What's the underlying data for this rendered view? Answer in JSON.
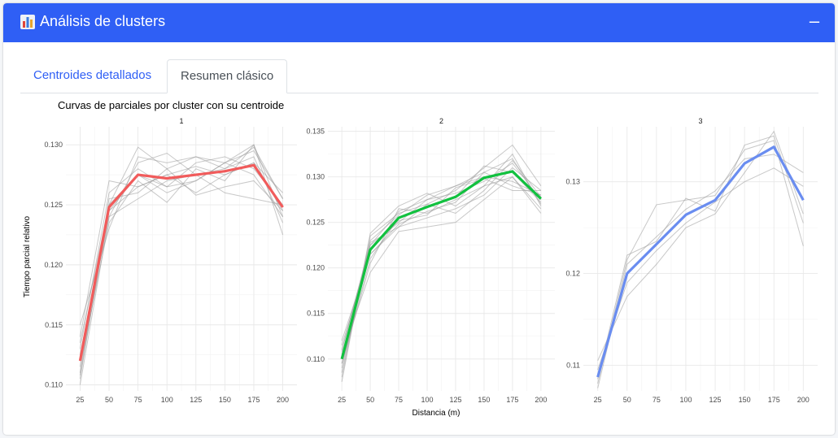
{
  "header": {
    "title": "Análisis de clusters",
    "collapse_label": "–"
  },
  "tabs": [
    {
      "label": "Centroides detallados",
      "active": false
    },
    {
      "label": "Resumen clásico",
      "active": true
    }
  ],
  "chart_data": {
    "type": "line",
    "title": "Curvas de parciales por cluster con su centroide",
    "xlabel": "Distancia (m)",
    "ylabel": "Tiempo parcial relativo",
    "x": [
      25,
      50,
      75,
      100,
      125,
      150,
      175,
      200
    ],
    "grid": true,
    "panels": [
      {
        "name": "1",
        "ylim": [
          0.1095,
          0.1315
        ],
        "yticks": [
          0.11,
          0.115,
          0.12,
          0.125,
          0.13
        ],
        "centroid_color": "#f15b5b",
        "centroid": [
          0.112,
          0.1248,
          0.1275,
          0.1272,
          0.1275,
          0.1278,
          0.1283,
          0.1248
        ],
        "members": [
          [
            0.1105,
            0.125,
            0.1298,
            0.128,
            0.129,
            0.1285,
            0.13,
            0.124
          ],
          [
            0.113,
            0.126,
            0.128,
            0.1265,
            0.127,
            0.1285,
            0.1295,
            0.1255
          ],
          [
            0.11,
            0.124,
            0.1285,
            0.1293,
            0.1275,
            0.128,
            0.129,
            0.1235
          ],
          [
            0.114,
            0.127,
            0.1265,
            0.1275,
            0.126,
            0.1275,
            0.1285,
            0.126
          ],
          [
            0.1115,
            0.1235,
            0.127,
            0.1252,
            0.128,
            0.127,
            0.13,
            0.1225
          ],
          [
            0.1125,
            0.1245,
            0.1275,
            0.1265,
            0.1285,
            0.129,
            0.128,
            0.125
          ],
          [
            0.111,
            0.1255,
            0.126,
            0.128,
            0.1258,
            0.1265,
            0.127,
            0.1245
          ],
          [
            0.115,
            0.123,
            0.129,
            0.1285,
            0.129,
            0.128,
            0.1298,
            0.1255
          ],
          [
            0.112,
            0.124,
            0.1255,
            0.127,
            0.1275,
            0.126,
            0.1255,
            0.125
          ],
          [
            0.1135,
            0.125,
            0.1275,
            0.126,
            0.127,
            0.1285,
            0.1275,
            0.124
          ],
          [
            0.1108,
            0.1245,
            0.1265,
            0.1275,
            0.1282,
            0.1275,
            0.1285,
            0.1245
          ]
        ]
      },
      {
        "name": "2",
        "ylim": [
          0.1065,
          0.1355
        ],
        "yticks": [
          0.11,
          0.115,
          0.12,
          0.125,
          0.13,
          0.135
        ],
        "centroid_color": "#11c13f",
        "centroid": [
          0.11,
          0.122,
          0.1255,
          0.1267,
          0.1278,
          0.1299,
          0.1306,
          0.1276
        ],
        "members": [
          [
            0.108,
            0.1235,
            0.126,
            0.127,
            0.1285,
            0.131,
            0.1335,
            0.129
          ],
          [
            0.111,
            0.1225,
            0.125,
            0.1275,
            0.129,
            0.1305,
            0.132,
            0.127
          ],
          [
            0.1095,
            0.1205,
            0.1265,
            0.126,
            0.1275,
            0.129,
            0.13,
            0.126
          ],
          [
            0.112,
            0.1215,
            0.1245,
            0.1255,
            0.1265,
            0.128,
            0.131,
            0.1285
          ],
          [
            0.1085,
            0.123,
            0.1258,
            0.128,
            0.129,
            0.13,
            0.1295,
            0.128
          ],
          [
            0.1105,
            0.1195,
            0.124,
            0.1245,
            0.125,
            0.1275,
            0.13,
            0.1265
          ],
          [
            0.109,
            0.1225,
            0.1262,
            0.1275,
            0.1282,
            0.1295,
            0.1315,
            0.1275
          ],
          [
            0.1115,
            0.1215,
            0.1248,
            0.1262,
            0.1272,
            0.1305,
            0.129,
            0.128
          ],
          [
            0.1075,
            0.1238,
            0.1268,
            0.1282,
            0.1268,
            0.129,
            0.1325,
            0.1268
          ],
          [
            0.11,
            0.122,
            0.1252,
            0.1258,
            0.1288,
            0.1298,
            0.1285,
            0.1285
          ],
          [
            0.1095,
            0.121,
            0.1255,
            0.1268,
            0.1278,
            0.1312,
            0.1305,
            0.1272
          ],
          [
            0.1108,
            0.1228,
            0.1245,
            0.127,
            0.126,
            0.1285,
            0.1318,
            0.1278
          ]
        ]
      },
      {
        "name": "3",
        "ylim": [
          0.1072,
          0.136
        ],
        "yticks": [
          0.11,
          0.12,
          0.13
        ],
        "centroid_color": "#6a8df0",
        "centroid": [
          0.1087,
          0.12,
          0.1232,
          0.1264,
          0.128,
          0.132,
          0.1338,
          0.128
        ],
        "members": [
          [
            0.108,
            0.1215,
            0.1275,
            0.128,
            0.1285,
            0.1335,
            0.1345,
            0.123
          ],
          [
            0.1105,
            0.1175,
            0.121,
            0.125,
            0.1265,
            0.131,
            0.1355,
            0.1265
          ],
          [
            0.1075,
            0.121,
            0.124,
            0.127,
            0.129,
            0.1325,
            0.133,
            0.131
          ],
          [
            0.1095,
            0.119,
            0.1225,
            0.1255,
            0.1278,
            0.13,
            0.1315,
            0.1295
          ],
          [
            0.1085,
            0.122,
            0.1235,
            0.1282,
            0.1268,
            0.134,
            0.135,
            0.1255
          ]
        ]
      }
    ]
  }
}
